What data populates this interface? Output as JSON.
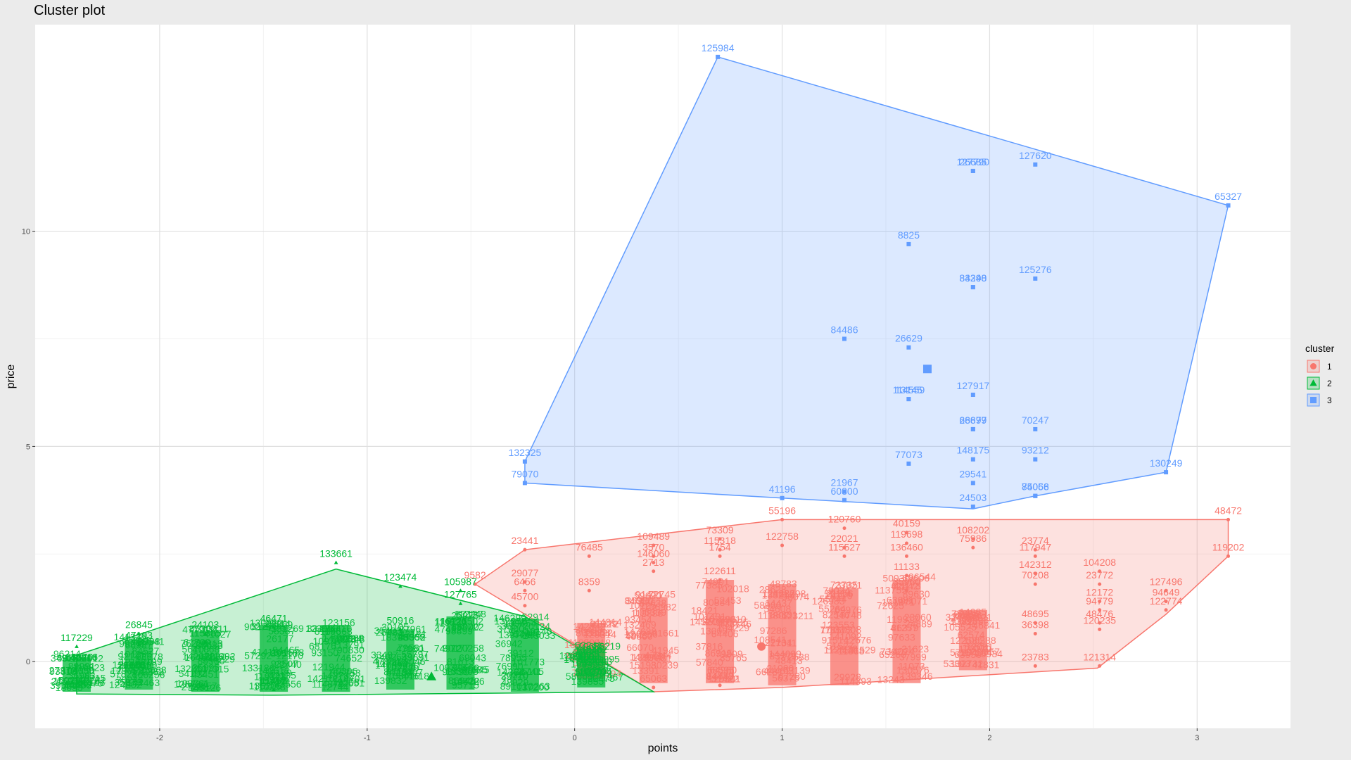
{
  "chart_data": {
    "type": "scatter",
    "title": "Cluster plot",
    "xlabel": "points",
    "ylabel": "price",
    "xlim": [
      -2.6,
      3.45
    ],
    "ylim": [
      -1.55,
      14.8
    ],
    "x_ticks": [
      -2,
      -1,
      0,
      1,
      2,
      3
    ],
    "y_ticks": [
      0,
      5,
      10
    ],
    "grid": true,
    "legend": {
      "title": "cluster",
      "position": "right",
      "entries": [
        {
          "label": "1",
          "shape": "circle",
          "color": "#f8766d"
        },
        {
          "label": "2",
          "shape": "triangle",
          "color": "#00ba38"
        },
        {
          "label": "3",
          "shape": "square",
          "color": "#619cff"
        }
      ]
    },
    "clusters": [
      {
        "name": "1",
        "color": "#f8766d",
        "shape": "circle",
        "center": [
          0.9,
          0.35
        ],
        "hull": [
          [
            -0.48,
            1.8
          ],
          [
            -0.24,
            2.6
          ],
          [
            1.0,
            3.3
          ],
          [
            3.15,
            3.3
          ],
          [
            3.15,
            2.45
          ],
          [
            2.85,
            1.1
          ],
          [
            2.52,
            -0.15
          ],
          [
            1.0,
            -0.6
          ],
          [
            0.38,
            -0.7
          ]
        ],
        "columns": [
          {
            "x": 0.08,
            "ymin": -0.4,
            "ymax": 0.9
          },
          {
            "x": 0.38,
            "ymin": -0.5,
            "ymax": 1.5
          },
          {
            "x": 0.7,
            "ymin": -0.5,
            "ymax": 1.9
          },
          {
            "x": 1.0,
            "ymin": -0.55,
            "ymax": 1.8
          },
          {
            "x": 1.3,
            "ymin": -0.55,
            "ymax": 1.7
          },
          {
            "x": 1.6,
            "ymin": -0.5,
            "ymax": 1.9
          },
          {
            "x": 1.92,
            "ymin": -0.2,
            "ymax": 1.2
          }
        ],
        "labels": [
          {
            "x": -0.24,
            "y": 2.6,
            "text": "23441"
          },
          {
            "x": 0.07,
            "y": 2.45,
            "text": "76485"
          },
          {
            "x": 0.38,
            "y": 2.7,
            "text": "109489"
          },
          {
            "x": 0.38,
            "y": 2.45,
            "text": "3570"
          },
          {
            "x": 0.38,
            "y": 2.3,
            "text": "146060"
          },
          {
            "x": 0.38,
            "y": 2.1,
            "text": "2713"
          },
          {
            "x": 0.7,
            "y": 2.85,
            "text": "73309"
          },
          {
            "x": 0.7,
            "y": 2.6,
            "text": "115318"
          },
          {
            "x": 0.7,
            "y": 2.45,
            "text": "1754"
          },
          {
            "x": 0.7,
            "y": 1.9,
            "text": "122611"
          },
          {
            "x": 1.0,
            "y": 3.3,
            "text": "55196"
          },
          {
            "x": 1.0,
            "y": 2.7,
            "text": "122758"
          },
          {
            "x": 1.3,
            "y": 3.1,
            "text": "120760"
          },
          {
            "x": 1.3,
            "y": 2.65,
            "text": "22021"
          },
          {
            "x": 1.3,
            "y": 2.45,
            "text": "115527"
          },
          {
            "x": 1.6,
            "y": 3.0,
            "text": "40159"
          },
          {
            "x": 1.6,
            "y": 2.75,
            "text": "119698"
          },
          {
            "x": 1.6,
            "y": 2.45,
            "text": "136460"
          },
          {
            "x": 1.6,
            "y": 2.0,
            "text": "11133"
          },
          {
            "x": 1.6,
            "y": 1.65,
            "text": "35960"
          },
          {
            "x": 1.92,
            "y": 2.85,
            "text": "108202"
          },
          {
            "x": 1.92,
            "y": 2.65,
            "text": "75986"
          },
          {
            "x": 2.22,
            "y": 2.6,
            "text": "23774"
          },
          {
            "x": 2.22,
            "y": 2.45,
            "text": "117947"
          },
          {
            "x": 2.22,
            "y": 2.05,
            "text": "142312"
          },
          {
            "x": 2.22,
            "y": 1.8,
            "text": "70208"
          },
          {
            "x": 2.22,
            "y": 0.9,
            "text": "48695"
          },
          {
            "x": 2.22,
            "y": 0.65,
            "text": "36398"
          },
          {
            "x": 2.22,
            "y": -0.1,
            "text": "23783"
          },
          {
            "x": 2.53,
            "y": 2.1,
            "text": "104208"
          },
          {
            "x": 2.53,
            "y": 1.8,
            "text": "23772"
          },
          {
            "x": 2.53,
            "y": 1.4,
            "text": "12172"
          },
          {
            "x": 2.53,
            "y": 1.2,
            "text": "94779"
          },
          {
            "x": 2.53,
            "y": 0.9,
            "text": "48476"
          },
          {
            "x": 2.53,
            "y": 0.75,
            "text": "120235"
          },
          {
            "x": 2.53,
            "y": -0.1,
            "text": "121314"
          },
          {
            "x": 2.85,
            "y": 1.65,
            "text": "127496"
          },
          {
            "x": 2.85,
            "y": 1.4,
            "text": "94649"
          },
          {
            "x": 2.85,
            "y": 1.2,
            "text": "122774"
          },
          {
            "x": 3.15,
            "y": 3.3,
            "text": "48472"
          },
          {
            "x": 3.15,
            "y": 2.45,
            "text": "119202"
          },
          {
            "x": -0.24,
            "y": 1.85,
            "text": "29077"
          },
          {
            "x": -0.24,
            "y": 1.65,
            "text": "6456"
          },
          {
            "x": 0.07,
            "y": 1.65,
            "text": "8359"
          },
          {
            "x": -0.24,
            "y": 1.3,
            "text": "45700"
          },
          {
            "x": -0.48,
            "y": 1.8,
            "text": "9582"
          },
          {
            "x": 0.38,
            "y": -0.6,
            "text": "65063"
          },
          {
            "x": 0.7,
            "y": -0.55,
            "text": "84443"
          }
        ]
      },
      {
        "name": "2",
        "color": "#00ba38",
        "shape": "triangle",
        "center": [
          -0.69,
          -0.35
        ],
        "hull": [
          [
            -2.4,
            -0.75
          ],
          [
            -2.4,
            0.15
          ],
          [
            -1.15,
            2.15
          ],
          [
            -0.24,
            1.05
          ],
          [
            0.38,
            -0.7
          ],
          [
            -1.45,
            -0.78
          ]
        ],
        "columns": [
          {
            "x": -2.4,
            "ymin": -0.7,
            "ymax": 0.1
          },
          {
            "x": -2.1,
            "ymin": -0.65,
            "ymax": 0.5
          },
          {
            "x": -1.78,
            "ymin": -0.7,
            "ymax": 0.7
          },
          {
            "x": -1.45,
            "ymin": -0.7,
            "ymax": 0.85
          },
          {
            "x": -1.15,
            "ymin": -0.7,
            "ymax": 0.85
          },
          {
            "x": -0.84,
            "ymin": -0.65,
            "ymax": 0.75
          },
          {
            "x": -0.55,
            "ymin": -0.65,
            "ymax": 1.05
          },
          {
            "x": -0.24,
            "ymin": -0.7,
            "ymax": 1.0
          },
          {
            "x": 0.08,
            "ymin": -0.6,
            "ymax": 0.3
          }
        ],
        "labels": [
          {
            "x": -1.15,
            "y": 2.3,
            "text": "133661"
          },
          {
            "x": -0.84,
            "y": 1.75,
            "text": "123474"
          },
          {
            "x": -0.55,
            "y": 1.65,
            "text": "105987"
          },
          {
            "x": -0.55,
            "y": 1.35,
            "text": "127765"
          },
          {
            "x": -2.4,
            "y": 0.35,
            "text": "117229"
          },
          {
            "x": -2.1,
            "y": 0.65,
            "text": "26845"
          },
          {
            "x": -2.1,
            "y": 0.4,
            "text": "47193"
          },
          {
            "x": -1.78,
            "y": 0.65,
            "text": "24103"
          },
          {
            "x": -1.78,
            "y": 0.45,
            "text": "115385"
          },
          {
            "x": -1.45,
            "y": 0.8,
            "text": "46471"
          },
          {
            "x": -0.84,
            "y": 0.75,
            "text": "50916"
          },
          {
            "x": -1.45,
            "y": -0.65,
            "text": "11463"
          }
        ]
      },
      {
        "name": "3",
        "color": "#619cff",
        "shape": "square",
        "center": [
          1.7,
          6.8
        ],
        "hull": [
          [
            -0.24,
            4.15
          ],
          [
            -0.24,
            4.65
          ],
          [
            0.69,
            14.05
          ],
          [
            3.15,
            10.6
          ],
          [
            2.85,
            4.4
          ],
          [
            2.22,
            3.85
          ],
          [
            1.92,
            3.55
          ],
          [
            1.0,
            3.8
          ]
        ],
        "points": [
          {
            "x": 0.69,
            "y": 14.05,
            "label": "125984"
          },
          {
            "x": 1.92,
            "y": 11.4,
            "label": "127790"
          },
          {
            "x": 1.92,
            "y": 11.4,
            "label": "26685"
          },
          {
            "x": 2.22,
            "y": 11.55,
            "label": "127620"
          },
          {
            "x": 3.15,
            "y": 10.6,
            "label": "65327"
          },
          {
            "x": 1.61,
            "y": 9.7,
            "label": "8825"
          },
          {
            "x": 1.92,
            "y": 8.7,
            "label": "83290"
          },
          {
            "x": 1.92,
            "y": 8.7,
            "label": "84348"
          },
          {
            "x": 2.22,
            "y": 8.9,
            "label": "125276"
          },
          {
            "x": 1.3,
            "y": 7.5,
            "label": "84486"
          },
          {
            "x": 1.61,
            "y": 7.3,
            "label": "26629"
          },
          {
            "x": 1.61,
            "y": 6.1,
            "label": "13145"
          },
          {
            "x": 1.61,
            "y": 6.1,
            "label": "114559"
          },
          {
            "x": 1.92,
            "y": 6.2,
            "label": "127917"
          },
          {
            "x": 1.92,
            "y": 5.4,
            "label": "26697"
          },
          {
            "x": 1.92,
            "y": 5.4,
            "label": "68879"
          },
          {
            "x": 2.22,
            "y": 5.4,
            "label": "70247"
          },
          {
            "x": -0.24,
            "y": 4.65,
            "label": "132325"
          },
          {
            "x": 1.61,
            "y": 4.6,
            "label": "77073"
          },
          {
            "x": 1.92,
            "y": 4.7,
            "label": "148175"
          },
          {
            "x": 2.22,
            "y": 4.7,
            "label": "93212"
          },
          {
            "x": 2.85,
            "y": 4.4,
            "label": "130249"
          },
          {
            "x": -0.24,
            "y": 4.15,
            "label": "79070"
          },
          {
            "x": 1.0,
            "y": 3.8,
            "label": "41196"
          },
          {
            "x": 1.3,
            "y": 3.95,
            "label": "21967"
          },
          {
            "x": 1.3,
            "y": 3.75,
            "label": "60800"
          },
          {
            "x": 1.92,
            "y": 4.15,
            "label": "29541"
          },
          {
            "x": 1.92,
            "y": 3.6,
            "label": "24503"
          },
          {
            "x": 2.22,
            "y": 3.85,
            "label": "85056"
          },
          {
            "x": 2.22,
            "y": 3.85,
            "label": "74068"
          }
        ]
      }
    ]
  }
}
